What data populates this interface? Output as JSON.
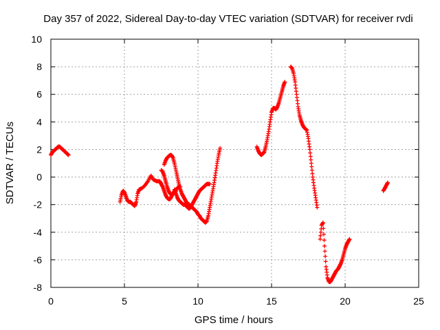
{
  "chart_data": {
    "type": "scatter",
    "title": "Day 357 of 2022, Sidereal Day-to-day VTEC variation (SDTVAR) for receiver rvdi",
    "xlabel": "GPS time / hours",
    "ylabel": "SDTVAR / TECUs",
    "xlim": [
      0,
      25
    ],
    "ylim": [
      -8,
      10
    ],
    "xticks": [
      "0",
      "5",
      "10",
      "15",
      "20",
      "25"
    ],
    "yticks": [
      "-8",
      "-6",
      "-4",
      "-2",
      "0",
      "2",
      "4",
      "6",
      "8",
      "10"
    ],
    "grid": true,
    "marker": "plus",
    "color": "#ff0000",
    "series": [
      {
        "segments": [
          [
            [
              0.0,
              1.6
            ],
            [
              0.1,
              1.8
            ],
            [
              0.2,
              1.9
            ],
            [
              0.3,
              2.0
            ],
            [
              0.4,
              2.1
            ],
            [
              0.5,
              2.2
            ],
            [
              0.6,
              2.2
            ],
            [
              0.7,
              2.1
            ],
            [
              0.8,
              2.0
            ],
            [
              0.9,
              1.9
            ],
            [
              1.0,
              1.8
            ],
            [
              1.1,
              1.7
            ],
            [
              1.2,
              1.6
            ]
          ],
          [
            [
              4.7,
              -1.8
            ],
            [
              4.8,
              -1.3
            ],
            [
              4.9,
              -1.0
            ],
            [
              5.0,
              -1.1
            ],
            [
              5.1,
              -1.4
            ],
            [
              5.2,
              -1.7
            ],
            [
              5.3,
              -1.8
            ],
            [
              5.4,
              -1.8
            ],
            [
              5.5,
              -1.9
            ],
            [
              5.6,
              -2.0
            ],
            [
              5.7,
              -2.1
            ],
            [
              5.8,
              -1.8
            ],
            [
              5.9,
              -1.2
            ],
            [
              6.0,
              -0.9
            ],
            [
              6.2,
              -0.8
            ],
            [
              6.4,
              -0.6
            ],
            [
              6.6,
              -0.3
            ],
            [
              6.8,
              0.1
            ],
            [
              6.9,
              -0.1
            ],
            [
              7.0,
              -0.2
            ],
            [
              7.2,
              -0.3
            ],
            [
              7.4,
              -0.3
            ],
            [
              7.5,
              -0.5
            ],
            [
              7.6,
              -0.7
            ],
            [
              7.7,
              -1.0
            ],
            [
              7.8,
              -1.3
            ],
            [
              7.9,
              -1.5
            ],
            [
              8.0,
              -1.6
            ],
            [
              8.1,
              -1.6
            ],
            [
              8.2,
              -1.4
            ],
            [
              8.3,
              -1.2
            ],
            [
              8.4,
              -1.0
            ],
            [
              8.5,
              -0.9
            ],
            [
              8.6,
              -0.8
            ],
            [
              8.7,
              -0.7
            ],
            [
              8.8,
              -0.7
            ]
          ],
          [
            [
              7.5,
              0.5
            ],
            [
              7.6,
              0.4
            ],
            [
              7.7,
              0.1
            ],
            [
              7.8,
              -0.3
            ],
            [
              7.9,
              -0.7
            ],
            [
              8.0,
              -1.0
            ],
            [
              8.1,
              -1.2
            ],
            [
              8.2,
              -1.3
            ],
            [
              8.3,
              -1.2
            ],
            [
              8.4,
              -1.1
            ],
            [
              8.5,
              -1.0
            ]
          ],
          [
            [
              7.7,
              0.9
            ],
            [
              7.8,
              1.2
            ],
            [
              7.9,
              1.4
            ],
            [
              8.0,
              1.5
            ],
            [
              8.1,
              1.6
            ],
            [
              8.2,
              1.6
            ],
            [
              8.3,
              1.4
            ],
            [
              8.4,
              1.0
            ],
            [
              8.5,
              0.5
            ],
            [
              8.6,
              0.0
            ],
            [
              8.7,
              -0.5
            ],
            [
              8.8,
              -0.9
            ],
            [
              8.9,
              -1.2
            ],
            [
              9.0,
              -1.4
            ],
            [
              9.1,
              -1.6
            ],
            [
              9.2,
              -1.8
            ],
            [
              9.3,
              -1.9
            ],
            [
              9.4,
              -2.0
            ],
            [
              9.5,
              -2.1
            ],
            [
              9.6,
              -2.2
            ],
            [
              9.7,
              -2.3
            ],
            [
              9.8,
              -2.4
            ],
            [
              9.9,
              -2.5
            ],
            [
              10.0,
              -2.7
            ],
            [
              10.1,
              -2.8
            ],
            [
              10.2,
              -3.0
            ],
            [
              10.3,
              -3.1
            ],
            [
              10.4,
              -3.2
            ],
            [
              10.5,
              -3.3
            ],
            [
              10.6,
              -3.2
            ],
            [
              10.7,
              -2.8
            ],
            [
              10.8,
              -2.2
            ],
            [
              10.9,
              -1.6
            ],
            [
              11.0,
              -1.0
            ],
            [
              11.1,
              -0.4
            ],
            [
              11.2,
              0.3
            ],
            [
              11.3,
              1.0
            ],
            [
              11.4,
              1.6
            ],
            [
              11.5,
              2.1
            ]
          ],
          [
            [
              8.4,
              -0.9
            ],
            [
              8.5,
              -1.2
            ],
            [
              8.6,
              -1.5
            ],
            [
              8.7,
              -1.7
            ],
            [
              8.8,
              -1.8
            ],
            [
              8.9,
              -1.9
            ],
            [
              9.0,
              -2.0
            ],
            [
              9.1,
              -2.0
            ],
            [
              9.2,
              -2.1
            ],
            [
              9.3,
              -2.2
            ],
            [
              9.4,
              -2.3
            ],
            [
              9.5,
              -2.2
            ],
            [
              9.6,
              -2.0
            ],
            [
              9.7,
              -1.8
            ],
            [
              9.8,
              -1.6
            ],
            [
              9.9,
              -1.4
            ],
            [
              10.0,
              -1.2
            ],
            [
              10.1,
              -1.0
            ],
            [
              10.2,
              -0.9
            ],
            [
              10.3,
              -0.8
            ],
            [
              10.4,
              -0.7
            ],
            [
              10.5,
              -0.6
            ],
            [
              10.6,
              -0.5
            ],
            [
              10.7,
              -0.5
            ],
            [
              10.8,
              -0.5
            ]
          ],
          [
            [
              14.0,
              2.2
            ],
            [
              14.1,
              1.9
            ],
            [
              14.2,
              1.7
            ],
            [
              14.3,
              1.6
            ],
            [
              14.4,
              1.7
            ],
            [
              14.5,
              1.8
            ],
            [
              14.6,
              2.2
            ],
            [
              14.7,
              2.7
            ],
            [
              14.8,
              3.3
            ],
            [
              14.9,
              4.0
            ],
            [
              15.0,
              4.7
            ],
            [
              15.1,
              5.0
            ],
            [
              15.2,
              5.0
            ],
            [
              15.3,
              4.9
            ],
            [
              15.4,
              5.1
            ],
            [
              15.5,
              5.4
            ],
            [
              15.6,
              5.8
            ],
            [
              15.7,
              6.2
            ],
            [
              15.8,
              6.6
            ],
            [
              15.9,
              6.9
            ]
          ],
          [
            [
              16.3,
              8.0
            ],
            [
              16.4,
              7.9
            ],
            [
              16.5,
              7.5
            ],
            [
              16.6,
              6.9
            ],
            [
              16.7,
              6.0
            ],
            [
              16.8,
              5.1
            ],
            [
              16.9,
              4.5
            ],
            [
              17.0,
              4.1
            ],
            [
              17.1,
              3.8
            ],
            [
              17.2,
              3.6
            ],
            [
              17.3,
              3.5
            ],
            [
              17.4,
              3.4
            ],
            [
              17.5,
              2.8
            ],
            [
              17.6,
              2.0
            ],
            [
              17.7,
              1.0
            ],
            [
              17.8,
              0.0
            ],
            [
              17.9,
              -0.8
            ],
            [
              18.0,
              -1.5
            ],
            [
              18.1,
              -2.2
            ]
          ],
          [
            [
              18.3,
              -4.5
            ],
            [
              18.4,
              -3.5
            ],
            [
              18.5,
              -3.3
            ],
            [
              18.6,
              -5.0
            ],
            [
              18.7,
              -6.5
            ],
            [
              18.8,
              -7.3
            ],
            [
              18.9,
              -7.6
            ],
            [
              19.0,
              -7.6
            ],
            [
              19.1,
              -7.4
            ],
            [
              19.2,
              -7.2
            ],
            [
              19.3,
              -7.0
            ],
            [
              19.4,
              -6.8
            ],
            [
              19.5,
              -6.7
            ],
            [
              19.6,
              -6.5
            ],
            [
              19.7,
              -6.3
            ],
            [
              19.8,
              -6.0
            ],
            [
              19.9,
              -5.6
            ],
            [
              20.0,
              -5.2
            ],
            [
              20.1,
              -4.9
            ],
            [
              20.2,
              -4.7
            ],
            [
              20.3,
              -4.5
            ]
          ],
          [
            [
              22.6,
              -1.0
            ],
            [
              22.7,
              -0.8
            ],
            [
              22.8,
              -0.6
            ],
            [
              22.9,
              -0.4
            ]
          ]
        ]
      }
    ]
  }
}
